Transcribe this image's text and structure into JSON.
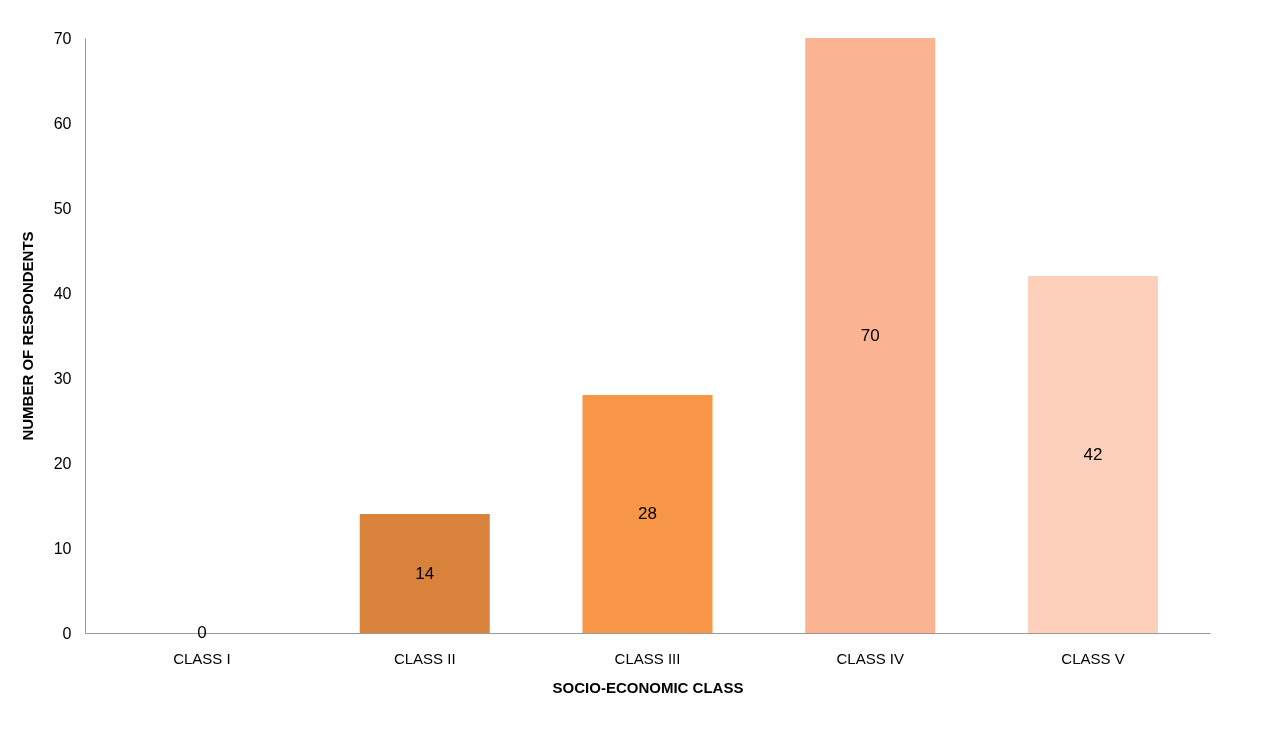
{
  "chart_data": {
    "type": "bar",
    "xlabel": "SOCIO-ECONOMIC CLASS",
    "ylabel": "NUMBER OF RESPONDENTS",
    "categories": [
      "CLASS I",
      "CLASS II",
      "CLASS III",
      "CLASS IV",
      "CLASS V"
    ],
    "values": [
      0,
      14,
      28,
      70,
      42
    ],
    "colors": [
      "#8e5527",
      "#d9823b",
      "#f79646",
      "#fab491",
      "#fcd0ba"
    ],
    "ylim": [
      0,
      70
    ],
    "yticks": [
      0,
      10,
      20,
      30,
      40,
      50,
      60,
      70
    ],
    "grid": false,
    "data_labels": true,
    "legend": false
  }
}
